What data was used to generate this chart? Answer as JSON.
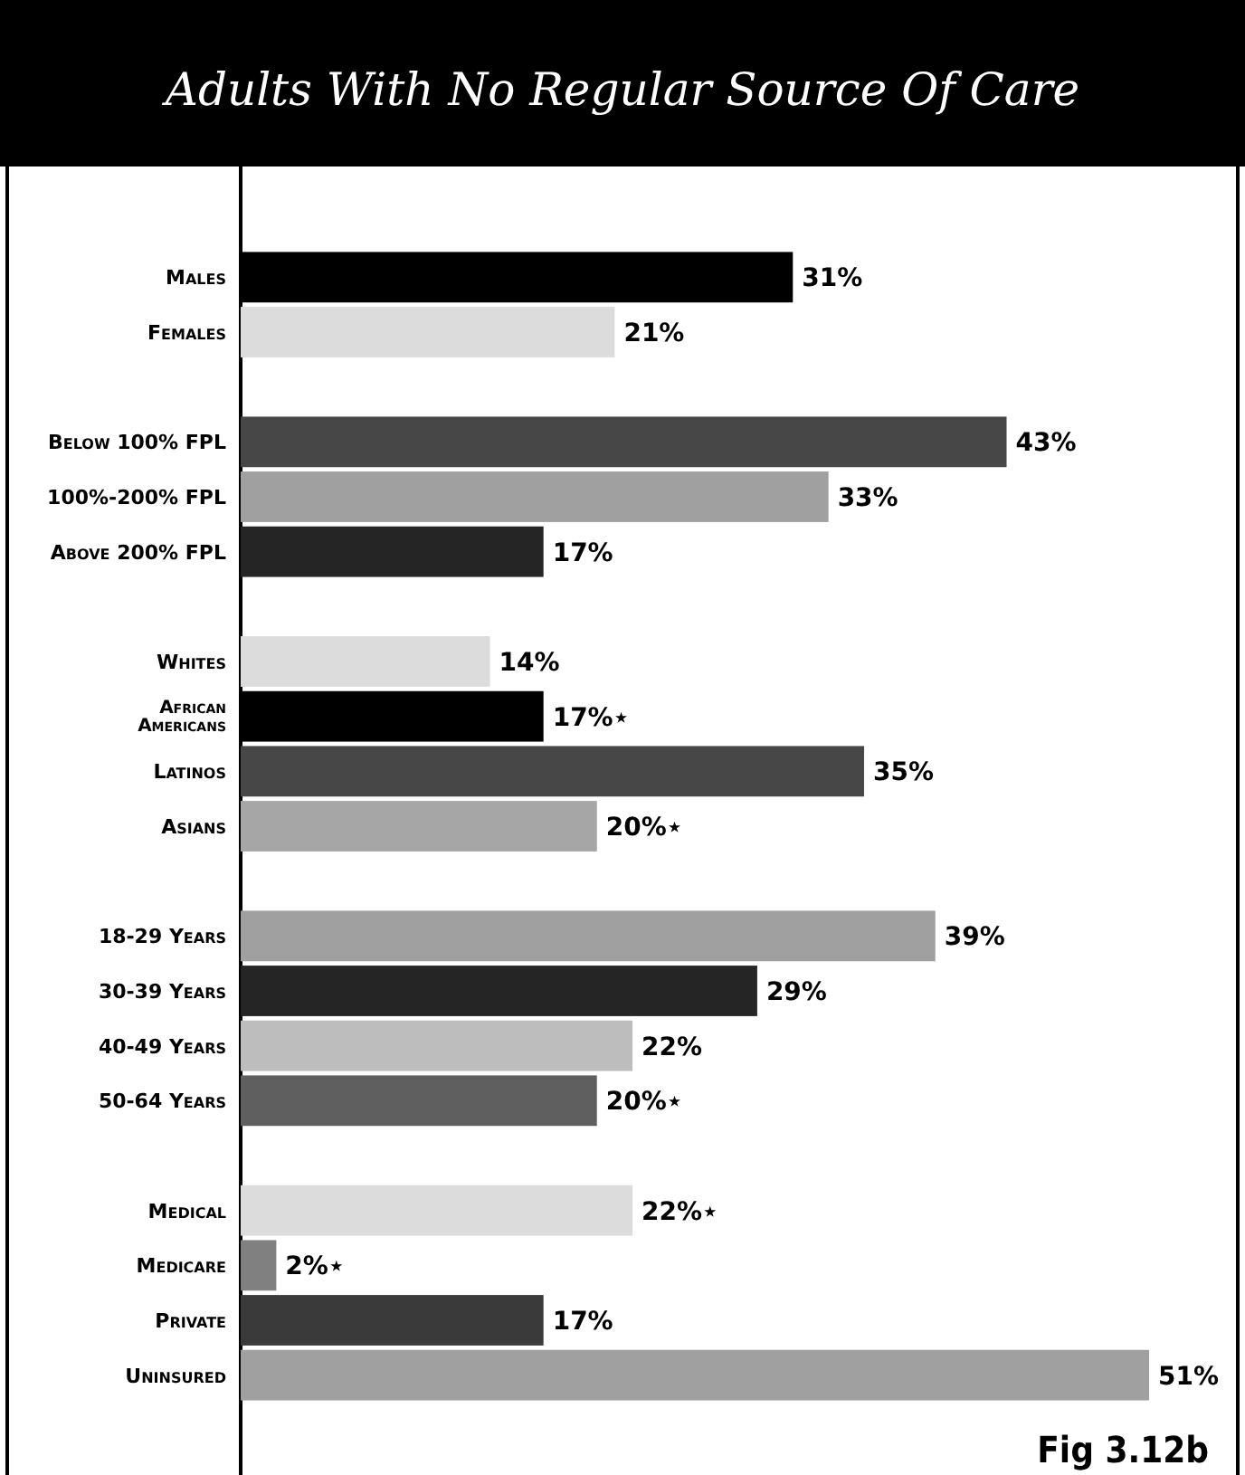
{
  "chart_data": {
    "type": "bar",
    "orientation": "horizontal",
    "title": "Adults With No Regular Source Of Care",
    "categories": [
      "Males",
      "Females",
      null,
      "Below 100% FPL",
      "100%-200% FPL",
      "Above 200% FPL",
      null,
      "Whites",
      "African Americans",
      "Latinos",
      "Asians",
      null,
      "18-29 Years",
      "30-39 Years",
      "40-49 Years",
      "50-64 Years",
      null,
      "Medical",
      "Medicare",
      "Private",
      "Uninsured"
    ],
    "values": [
      31,
      21,
      null,
      43,
      33,
      17,
      null,
      14,
      17,
      35,
      20,
      null,
      39,
      29,
      22,
      20,
      null,
      22,
      2,
      17,
      51
    ],
    "colors": [
      "#000000",
      "#dcdcdc",
      null,
      "#474747",
      "#a0a0a0",
      "#252525",
      null,
      "#dcdcdc",
      "#000000",
      "#474747",
      "#a6a6a6",
      null,
      "#a0a0a0",
      "#252525",
      "#bdbdbd",
      "#5f5f5f",
      null,
      "#dcdcdc",
      "#808080",
      "#3a3a3a",
      "#a0a0a0"
    ],
    "value_labels": [
      "31%",
      "21%",
      null,
      "43%",
      "33%",
      "17%",
      null,
      "14%",
      "17%⋆",
      "35%",
      "20%⋆",
      null,
      "39%",
      "29%",
      "22%",
      "20%⋆",
      null,
      "22%⋆",
      "2%⋆",
      "17%",
      "51%"
    ],
    "annotations": [
      "Fig 3.12b"
    ]
  }
}
